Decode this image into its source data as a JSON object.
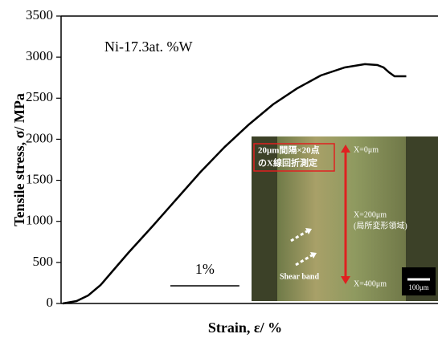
{
  "chart_data": {
    "type": "line",
    "annotation": "Ni-17.3at. %W",
    "ylabel": "Tensile stress, σ/ MPa",
    "xlabel": "Strain, ε/ %",
    "x": [
      0,
      0.2,
      0.37,
      0.55,
      0.72,
      0.95,
      1.3,
      1.65,
      2.0,
      2.35,
      2.7,
      3.05,
      3.4,
      3.74,
      4.09,
      4.38,
      4.56,
      4.65,
      4.73,
      4.81,
      4.98
    ],
    "values": [
      0,
      29,
      98,
      225,
      391,
      616,
      939,
      1271,
      1603,
      1907,
      2180,
      2425,
      2620,
      2777,
      2874,
      2914,
      2904,
      2874,
      2816,
      2767,
      2767
    ],
    "color": "#000000",
    "xlim": [
      0,
      5.44
    ],
    "ylim": [
      0,
      3500
    ],
    "yticks": [
      0,
      500,
      1000,
      1500,
      2000,
      2500,
      3000,
      3500
    ],
    "scale_bar": {
      "label": "1%",
      "length": 1
    },
    "inset": {
      "note": [
        "20μm間隔×20点",
        "のX線回折測定"
      ],
      "x0": "X=0μm",
      "x200": "X=200μm",
      "region": "(局所変形領域)",
      "x400": "X=400μm",
      "shear": "Shear band",
      "scale": "100μm"
    }
  }
}
